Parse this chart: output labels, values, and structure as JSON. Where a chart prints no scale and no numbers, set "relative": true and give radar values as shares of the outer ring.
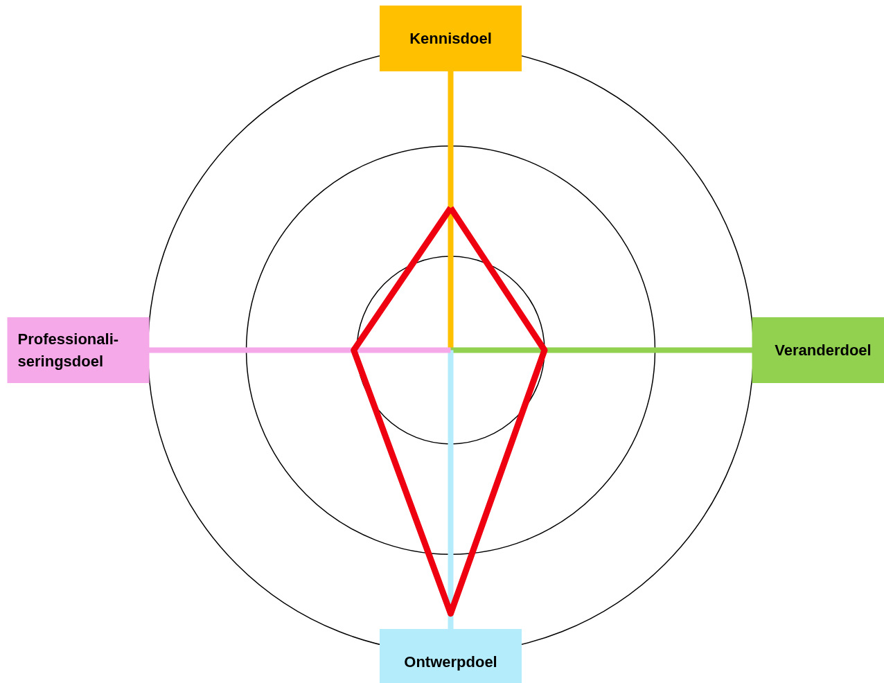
{
  "chart_data": {
    "type": "radar",
    "relative": true,
    "categories": [
      "Kennisdoel",
      "Veranderdoel",
      "Ontwerpdoel",
      "Professionali-\nseringsdoel"
    ],
    "colors": [
      "#ffc000",
      "#92d050",
      "#b4ecfc",
      "#f5a9e9"
    ],
    "series": [
      {
        "color": "#ee0011",
        "values": [
          0.47,
          0.31,
          0.87,
          0.32
        ]
      }
    ],
    "grid": true
  }
}
